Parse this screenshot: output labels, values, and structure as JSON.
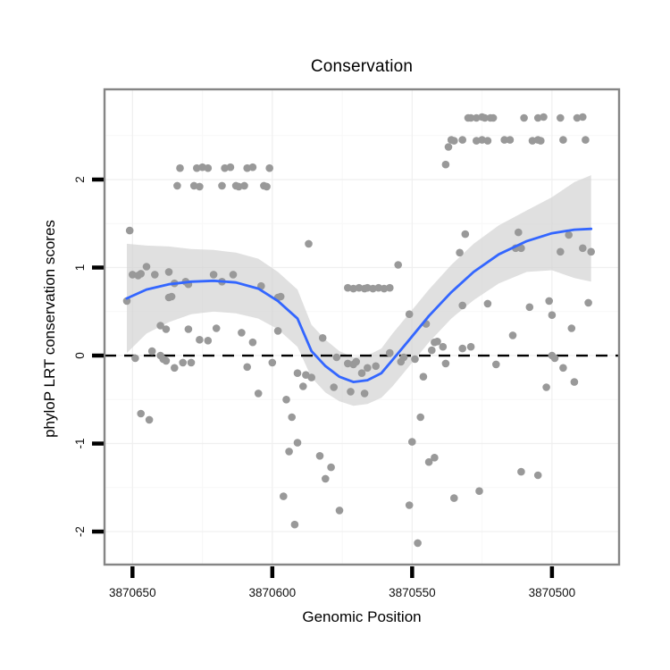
{
  "chart_data": {
    "type": "scatter",
    "title": "Conservation",
    "xlabel": "Genomic Position",
    "ylabel": "phyloP LRT conservation scores",
    "x_axis": {
      "reversed": true,
      "domain": [
        3870476,
        3870660
      ],
      "ticks": [
        {
          "value": 3870650,
          "label": "3870650"
        },
        {
          "value": 3870600,
          "label": "3870600"
        },
        {
          "value": 3870550,
          "label": "3870550"
        },
        {
          "value": 3870500,
          "label": "3870500"
        }
      ],
      "minor_gridlines": [
        3870625,
        3870575,
        3870525
      ]
    },
    "y_axis": {
      "domain": [
        -2.375,
        3.025
      ],
      "ticks": [
        {
          "value": -2,
          "label": "-2"
        },
        {
          "value": -1,
          "label": "-1"
        },
        {
          "value": 0,
          "label": "0"
        },
        {
          "value": 1,
          "label": "1"
        },
        {
          "value": 2,
          "label": "2"
        }
      ],
      "minor_gridlines": [
        -1.5,
        -0.5,
        0.5,
        1.5,
        2.5
      ]
    },
    "hline": {
      "y": 0,
      "style": "dashed",
      "color": "#000000"
    },
    "colors": {
      "point": "#999999",
      "smooth_line": "#3366FF",
      "ribbon": "#cfcfcf",
      "grid_major": "#efefef",
      "grid_minor": "#f7f7f7",
      "panel_border": "#858585",
      "panel_bg": "#ffffff",
      "tick": "#000000",
      "text": "#111111"
    },
    "points": [
      [
        3870633,
        2.13
      ],
      [
        3870627,
        2.13
      ],
      [
        3870625,
        2.14
      ],
      [
        3870623,
        2.13
      ],
      [
        3870617,
        2.13
      ],
      [
        3870615,
        2.14
      ],
      [
        3870609,
        2.13
      ],
      [
        3870607,
        2.14
      ],
      [
        3870601,
        2.13
      ],
      [
        3870634,
        1.93
      ],
      [
        3870628,
        1.93
      ],
      [
        3870626,
        1.92
      ],
      [
        3870618,
        1.93
      ],
      [
        3870613,
        1.93
      ],
      [
        3870612,
        1.92
      ],
      [
        3870610,
        1.93
      ],
      [
        3870603,
        1.93
      ],
      [
        3870602,
        1.92
      ],
      [
        3870530,
        2.7
      ],
      [
        3870529,
        2.7
      ],
      [
        3870527,
        2.7
      ],
      [
        3870525,
        2.71
      ],
      [
        3870524,
        2.7
      ],
      [
        3870522,
        2.7
      ],
      [
        3870521,
        2.7
      ],
      [
        3870510,
        2.7
      ],
      [
        3870505,
        2.7
      ],
      [
        3870503,
        2.71
      ],
      [
        3870497,
        2.7
      ],
      [
        3870491,
        2.7
      ],
      [
        3870489,
        2.71
      ],
      [
        3870536,
        2.45
      ],
      [
        3870535,
        2.44
      ],
      [
        3870532,
        2.45
      ],
      [
        3870527,
        2.44
      ],
      [
        3870525,
        2.45
      ],
      [
        3870523,
        2.44
      ],
      [
        3870517,
        2.45
      ],
      [
        3870515,
        2.45
      ],
      [
        3870507,
        2.44
      ],
      [
        3870505,
        2.45
      ],
      [
        3870504,
        2.44
      ],
      [
        3870496,
        2.45
      ],
      [
        3870488,
        2.45
      ],
      [
        3870537,
        2.37
      ],
      [
        3870538,
        2.17
      ],
      [
        3870651,
        1.42
      ],
      [
        3870645,
        1.01
      ],
      [
        3870650,
        0.92
      ],
      [
        3870648,
        0.91
      ],
      [
        3870647,
        0.93
      ],
      [
        3870642,
        0.92
      ],
      [
        3870637,
        0.95
      ],
      [
        3870635,
        0.82
      ],
      [
        3870631,
        0.84
      ],
      [
        3870630,
        0.81
      ],
      [
        3870636,
        0.67
      ],
      [
        3870621,
        0.92
      ],
      [
        3870618,
        0.84
      ],
      [
        3870614,
        0.92
      ],
      [
        3870604,
        0.79
      ],
      [
        3870597,
        0.67
      ],
      [
        3870637,
        0.66
      ],
      [
        3870598,
        0.66
      ],
      [
        3870587,
        1.27
      ],
      [
        3870652,
        0.62
      ],
      [
        3870573,
        0.77
      ],
      [
        3870571,
        0.76
      ],
      [
        3870569,
        0.77
      ],
      [
        3870567,
        0.76
      ],
      [
        3870566,
        0.77
      ],
      [
        3870564,
        0.76
      ],
      [
        3870562,
        0.77
      ],
      [
        3870560,
        0.76
      ],
      [
        3870558,
        0.77
      ],
      [
        3870555,
        1.03
      ],
      [
        3870640,
        0.34
      ],
      [
        3870638,
        0.3
      ],
      [
        3870630,
        0.3
      ],
      [
        3870620,
        0.31
      ],
      [
        3870626,
        0.18
      ],
      [
        3870623,
        0.17
      ],
      [
        3870611,
        0.26
      ],
      [
        3870607,
        0.15
      ],
      [
        3870598,
        0.28
      ],
      [
        3870649,
        -0.03
      ],
      [
        3870643,
        0.05
      ],
      [
        3870640,
        0.0
      ],
      [
        3870639,
        -0.04
      ],
      [
        3870638,
        -0.06
      ],
      [
        3870635,
        -0.14
      ],
      [
        3870632,
        -0.08
      ],
      [
        3870629,
        -0.08
      ],
      [
        3870609,
        -0.13
      ],
      [
        3870605,
        -0.43
      ],
      [
        3870600,
        -0.08
      ],
      [
        3870647,
        -0.66
      ],
      [
        3870644,
        -0.73
      ],
      [
        3870595,
        -0.5
      ],
      [
        3870593,
        -0.7
      ],
      [
        3870591,
        -0.99
      ],
      [
        3870594,
        -1.09
      ],
      [
        3870583,
        -1.14
      ],
      [
        3870579,
        -1.27
      ],
      [
        3870581,
        -1.4
      ],
      [
        3870596,
        -1.6
      ],
      [
        3870576,
        -1.76
      ],
      [
        3870592,
        -1.92
      ],
      [
        3870591,
        -0.2
      ],
      [
        3870588,
        -0.22
      ],
      [
        3870586,
        -0.25
      ],
      [
        3870589,
        -0.35
      ],
      [
        3870582,
        0.2
      ],
      [
        3870578,
        -0.36
      ],
      [
        3870577,
        -0.02
      ],
      [
        3870573,
        -0.09
      ],
      [
        3870571,
        -0.1
      ],
      [
        3870568,
        -0.2
      ],
      [
        3870572,
        -0.41
      ],
      [
        3870570,
        -0.07
      ],
      [
        3870566,
        -0.14
      ],
      [
        3870563,
        -0.12
      ],
      [
        3870558,
        0.03
      ],
      [
        3870554,
        -0.07
      ],
      [
        3870553,
        -0.02
      ],
      [
        3870549,
        -0.04
      ],
      [
        3870545,
        0.36
      ],
      [
        3870543,
        0.06
      ],
      [
        3870542,
        0.15
      ],
      [
        3870541,
        0.16
      ],
      [
        3870539,
        0.1
      ],
      [
        3870538,
        -0.09
      ],
      [
        3870551,
        0.47
      ],
      [
        3870567,
        -0.43
      ],
      [
        3870546,
        -0.24
      ],
      [
        3870532,
        0.08
      ],
      [
        3870529,
        0.1
      ],
      [
        3870532,
        0.57
      ],
      [
        3870523,
        0.59
      ],
      [
        3870508,
        0.55
      ],
      [
        3870501,
        0.62
      ],
      [
        3870487,
        0.6
      ],
      [
        3870514,
        0.23
      ],
      [
        3870520,
        -0.1
      ],
      [
        3870502,
        -0.36
      ],
      [
        3870500,
        0.0
      ],
      [
        3870499,
        -0.03
      ],
      [
        3870496,
        -0.14
      ],
      [
        3870492,
        -0.3
      ],
      [
        3870500,
        0.46
      ],
      [
        3870493,
        0.31
      ],
      [
        3870533,
        1.17
      ],
      [
        3870531,
        1.38
      ],
      [
        3870512,
        1.4
      ],
      [
        3870513,
        1.22
      ],
      [
        3870511,
        1.22
      ],
      [
        3870497,
        1.18
      ],
      [
        3870494,
        1.37
      ],
      [
        3870489,
        1.22
      ],
      [
        3870486,
        1.18
      ],
      [
        3870511,
        -1.32
      ],
      [
        3870505,
        -1.36
      ],
      [
        3870526,
        -1.54
      ],
      [
        3870535,
        -1.62
      ],
      [
        3870551,
        -1.7
      ],
      [
        3870548,
        -2.13
      ],
      [
        3870547,
        -0.7
      ],
      [
        3870550,
        -0.98
      ],
      [
        3870544,
        -1.21
      ],
      [
        3870542,
        -1.16
      ]
    ],
    "smooth": [
      {
        "pos": 3870652,
        "fit": 0.65,
        "lo": 0.03,
        "hi": 1.27
      },
      {
        "pos": 3870645,
        "fit": 0.75,
        "lo": 0.25,
        "hi": 1.25
      },
      {
        "pos": 3870637,
        "fit": 0.81,
        "lo": 0.38,
        "hi": 1.24
      },
      {
        "pos": 3870629,
        "fit": 0.84,
        "lo": 0.47,
        "hi": 1.21
      },
      {
        "pos": 3870621,
        "fit": 0.85,
        "lo": 0.5,
        "hi": 1.2
      },
      {
        "pos": 3870613,
        "fit": 0.83,
        "lo": 0.48,
        "hi": 1.17
      },
      {
        "pos": 3870605,
        "fit": 0.76,
        "lo": 0.42,
        "hi": 1.1
      },
      {
        "pos": 3870598,
        "fit": 0.62,
        "lo": 0.3,
        "hi": 0.95
      },
      {
        "pos": 3870591,
        "fit": 0.42,
        "lo": 0.1,
        "hi": 0.75
      },
      {
        "pos": 3870586,
        "fit": 0.05,
        "lo": -0.25,
        "hi": 0.35
      },
      {
        "pos": 3870581,
        "fit": -0.12,
        "lo": -0.42,
        "hi": 0.18
      },
      {
        "pos": 3870576,
        "fit": -0.24,
        "lo": -0.52,
        "hi": 0.05
      },
      {
        "pos": 3870571,
        "fit": -0.3,
        "lo": -0.57,
        "hi": -0.02
      },
      {
        "pos": 3870566,
        "fit": -0.28,
        "lo": -0.55,
        "hi": 0.0
      },
      {
        "pos": 3870561,
        "fit": -0.2,
        "lo": -0.48,
        "hi": 0.08
      },
      {
        "pos": 3870557,
        "fit": -0.05,
        "lo": -0.35,
        "hi": 0.25
      },
      {
        "pos": 3870551,
        "fit": 0.18,
        "lo": -0.12,
        "hi": 0.48
      },
      {
        "pos": 3870544,
        "fit": 0.45,
        "lo": 0.15,
        "hi": 0.75
      },
      {
        "pos": 3870536,
        "fit": 0.72,
        "lo": 0.42,
        "hi": 1.03
      },
      {
        "pos": 3870528,
        "fit": 0.95,
        "lo": 0.63,
        "hi": 1.27
      },
      {
        "pos": 3870519,
        "fit": 1.15,
        "lo": 0.82,
        "hi": 1.48
      },
      {
        "pos": 3870509,
        "fit": 1.3,
        "lo": 0.95,
        "hi": 1.65
      },
      {
        "pos": 3870500,
        "fit": 1.39,
        "lo": 0.97,
        "hi": 1.8
      },
      {
        "pos": 3870492,
        "fit": 1.43,
        "lo": 0.88,
        "hi": 1.97
      },
      {
        "pos": 3870486,
        "fit": 1.44,
        "lo": 0.84,
        "hi": 2.05
      }
    ]
  }
}
